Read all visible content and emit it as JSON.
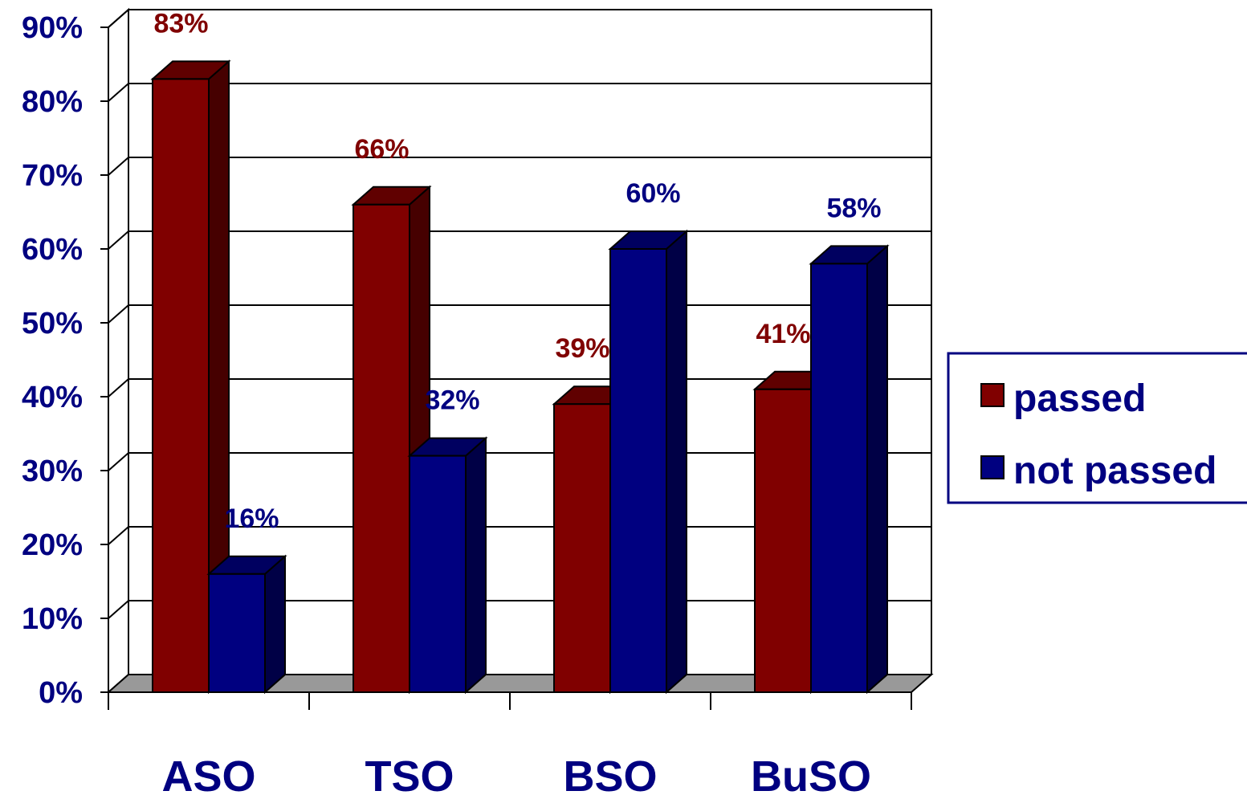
{
  "chart_data": {
    "type": "bar",
    "style": "3d-clustered-column",
    "categories": [
      "ASO",
      "TSO",
      "BSO",
      "BuSO"
    ],
    "series": [
      {
        "name": "passed",
        "values": [
          83,
          66,
          39,
          41
        ],
        "labels": [
          "83%",
          "66%",
          "39%",
          "41%"
        ],
        "color": "#800000"
      },
      {
        "name": "not passed",
        "values": [
          16,
          32,
          60,
          58
        ],
        "labels": [
          "16%",
          "32%",
          "60%",
          "58%"
        ],
        "color": "#000080"
      }
    ],
    "y_ticks": [
      "0%",
      "10%",
      "20%",
      "30%",
      "40%",
      "50%",
      "60%",
      "70%",
      "80%",
      "90%"
    ],
    "ylim": [
      0,
      90
    ],
    "unit": "%",
    "grid": true,
    "legend_position": "right",
    "label_colors": {
      "axis": "#000080",
      "floor": "#999999"
    }
  }
}
